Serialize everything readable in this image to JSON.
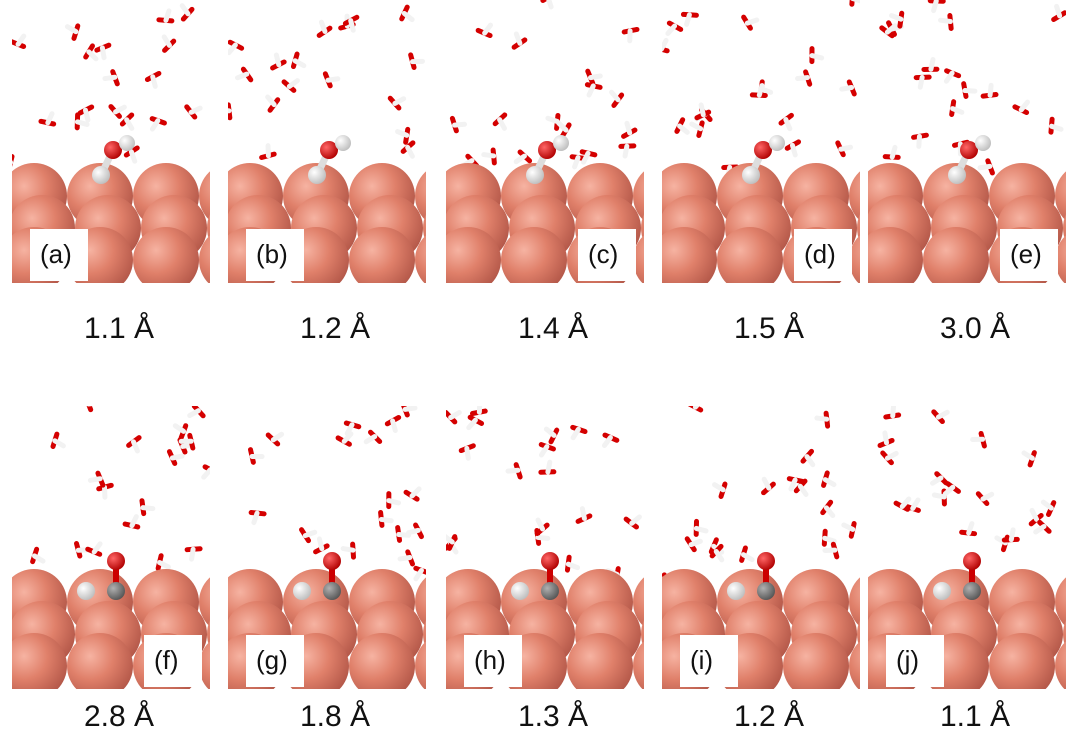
{
  "panels": [
    {
      "label": "(a)",
      "distance": "1.1 Å"
    },
    {
      "label": "(b)",
      "distance": "1.2 Å"
    },
    {
      "label": "(c)",
      "distance": "1.4 Å"
    },
    {
      "label": "(d)",
      "distance": "1.5 Å"
    },
    {
      "label": "(e)",
      "distance": "3.0 Å"
    },
    {
      "label": "(f)",
      "distance": "2.8 Å"
    },
    {
      "label": "(g)",
      "distance": "1.8 Å"
    },
    {
      "label": "(h)",
      "distance": "1.3 Å"
    },
    {
      "label": "(i)",
      "distance": "1.2 Å"
    },
    {
      "label": "(j)",
      "distance": "1.1 Å"
    }
  ]
}
